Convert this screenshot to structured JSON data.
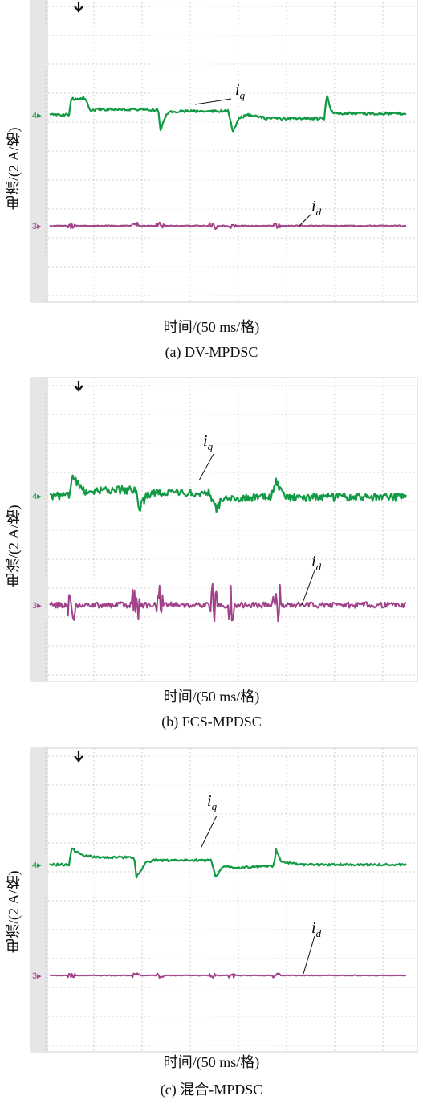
{
  "chart_data": [
    {
      "type": "line",
      "caption": "(a) DV-MPDSC",
      "xlabel": "时间/(50 ms/格)",
      "ylabel": "电流/(2 A/格)",
      "grid": true,
      "channel_markers": [
        "4",
        "3"
      ],
      "series": [
        {
          "name": "iq",
          "color": "#119944",
          "noise": 0.8,
          "points": [
            [
              0,
              0
            ],
            [
              0.4,
              0
            ],
            [
              0.45,
              0.55
            ],
            [
              0.6,
              0.55
            ],
            [
              0.72,
              0.58
            ],
            [
              0.85,
              0.15
            ],
            [
              1.0,
              0.2
            ],
            [
              2.0,
              0.18
            ],
            [
              2.25,
              0.18
            ],
            [
              2.3,
              -0.55
            ],
            [
              2.4,
              -0.05
            ],
            [
              2.5,
              0.12
            ],
            [
              3.0,
              0.13
            ],
            [
              3.7,
              0.13
            ],
            [
              3.8,
              -0.55
            ],
            [
              3.95,
              -0.1
            ],
            [
              4.1,
              0
            ],
            [
              4.5,
              -0.12
            ],
            [
              5.7,
              -0.12
            ],
            [
              5.75,
              0.7
            ],
            [
              5.85,
              0.1
            ],
            [
              6.0,
              0.05
            ],
            [
              7.4,
              0.05
            ]
          ]
        },
        {
          "name": "id",
          "color": "#a0438a",
          "noise": 0.3,
          "points": [
            [
              0,
              0
            ],
            [
              7.4,
              0
            ]
          ]
        }
      ]
    },
    {
      "type": "line",
      "caption": "(b) FCS-MPDSC",
      "xlabel": "时间/(50 ms/格)",
      "ylabel": "电流/(2 A/格)",
      "grid": true,
      "channel_markers": [
        "4",
        "3"
      ],
      "series": [
        {
          "name": "iq",
          "color": "#119944",
          "noise": 2.5,
          "points": [
            [
              0,
              0
            ],
            [
              0.4,
              0
            ],
            [
              0.45,
              0.6
            ],
            [
              0.6,
              0.45
            ],
            [
              0.75,
              0.1
            ],
            [
              1.0,
              0.2
            ],
            [
              1.8,
              0.2
            ],
            [
              1.85,
              -0.5
            ],
            [
              2.0,
              0
            ],
            [
              2.2,
              0.1
            ],
            [
              3.3,
              0.1
            ],
            [
              3.45,
              -0.45
            ],
            [
              3.6,
              -0.1
            ],
            [
              4.2,
              -0.05
            ],
            [
              4.6,
              -0.05
            ],
            [
              4.7,
              0.5
            ],
            [
              4.85,
              0
            ],
            [
              5.0,
              -0.05
            ],
            [
              7.4,
              -0.05
            ]
          ]
        },
        {
          "name": "id",
          "color": "#a0438a",
          "noise": 1.8,
          "points": [
            [
              0,
              0
            ],
            [
              7.4,
              0
            ]
          ]
        }
      ]
    },
    {
      "type": "line",
      "caption": "(c) 混合-MPDSC",
      "xlabel": "时间/(50 ms/格)",
      "ylabel": "电流/(2 A/格)",
      "grid": true,
      "channel_markers": [
        "4",
        "3"
      ],
      "series": [
        {
          "name": "iq",
          "color": "#119944",
          "noise": 0.7,
          "points": [
            [
              0,
              0
            ],
            [
              0.4,
              0
            ],
            [
              0.45,
              0.55
            ],
            [
              0.6,
              0.4
            ],
            [
              0.7,
              0.3
            ],
            [
              1.0,
              0.25
            ],
            [
              1.75,
              0.25
            ],
            [
              1.8,
              -0.45
            ],
            [
              2.0,
              0.1
            ],
            [
              2.2,
              0.15
            ],
            [
              3.35,
              0.15
            ],
            [
              3.45,
              -0.45
            ],
            [
              3.6,
              -0.05
            ],
            [
              4.0,
              -0.1
            ],
            [
              4.65,
              -0.05
            ],
            [
              4.7,
              0.5
            ],
            [
              4.8,
              0.1
            ],
            [
              5.2,
              0
            ],
            [
              7.4,
              0
            ]
          ]
        },
        {
          "name": "id",
          "color": "#a0438a",
          "noise": 0.2,
          "points": [
            [
              0,
              0
            ],
            [
              7.4,
              0
            ]
          ]
        }
      ]
    }
  ],
  "annotations": {
    "iq_main": "i",
    "iq_sub": "q",
    "id_main": "i",
    "id_sub": "d"
  }
}
